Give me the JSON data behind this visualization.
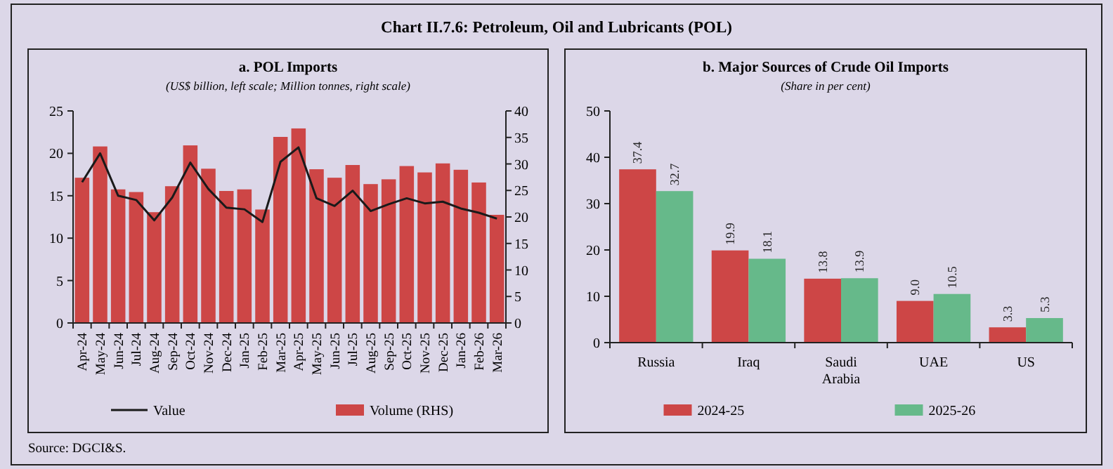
{
  "chart_data": [
    {
      "type": "bar",
      "title": "a. POL Imports",
      "subtitle": "(US$ billion, left scale; Million tonnes, right scale)",
      "annotations": [
        "Chart II.7.6: Petroleum, Oil and Lubricants (POL)",
        "Source: DGCI&S."
      ],
      "categories": [
        "Apr-24",
        "May-24",
        "Jun-24",
        "Jul-24",
        "Aug-24",
        "Sep-24",
        "Oct-24",
        "Nov-24",
        "Dec-24",
        "Jan-25",
        "Feb-25",
        "Mar-25",
        "Apr-25",
        "May-25",
        "Jun-25",
        "Jul-25",
        "Aug-25",
        "Sep-25",
        "Oct-25",
        "Nov-25",
        "Dec-25",
        "Jan-26",
        "Feb-26",
        "Mar-26"
      ],
      "series": [
        {
          "name": "Value",
          "type": "line",
          "color": "#1a1a1a",
          "values": [
            16.6,
            20.0,
            15.0,
            14.5,
            12.1,
            14.8,
            18.9,
            15.8,
            13.6,
            13.4,
            11.9,
            19.0,
            20.7,
            14.7,
            13.8,
            15.6,
            13.2,
            14.0,
            14.7,
            14.1,
            14.3,
            13.5,
            13.0,
            12.3
          ]
        },
        {
          "name": "Volume (RHS)",
          "axis": "y2",
          "color": "#cd4646",
          "values": [
            27.4,
            33.3,
            25.2,
            24.7,
            20.9,
            25.8,
            33.5,
            29.1,
            24.9,
            25.2,
            21.4,
            35.1,
            36.7,
            29.0,
            27.4,
            29.8,
            26.2,
            27.1,
            29.6,
            28.4,
            30.1,
            28.9,
            26.5,
            20.4
          ]
        }
      ],
      "ylim": [
        0,
        25
      ],
      "yticks": [
        0,
        5,
        10,
        15,
        20,
        25
      ],
      "y2lim": [
        0,
        40
      ],
      "y2ticks": [
        0,
        5,
        10,
        15,
        20,
        25,
        30,
        35,
        40
      ],
      "legend": "bottom"
    },
    {
      "type": "bar",
      "title": "b. Major Sources of Crude Oil Imports",
      "subtitle": "(Share in per cent)",
      "categories": [
        "Russia",
        "Iraq",
        "Saudi Arabia",
        "UAE",
        "US"
      ],
      "series": [
        {
          "name": "2024-25",
          "color": "#cd4646",
          "values": [
            37.4,
            19.9,
            13.8,
            9.0,
            3.3
          ]
        },
        {
          "name": "2025-26",
          "color": "#66b98a",
          "values": [
            32.7,
            18.1,
            13.9,
            10.5,
            5.3
          ]
        }
      ],
      "value_labels": [
        [
          "37.4",
          "19.9",
          "13.8",
          "9.0",
          "3.3"
        ],
        [
          "32.7",
          "18.1",
          "13.9",
          "10.5",
          "5.3"
        ]
      ],
      "ylim": [
        0,
        50
      ],
      "yticks": [
        0,
        10,
        20,
        30,
        40,
        50
      ],
      "legend": "bottom"
    }
  ]
}
